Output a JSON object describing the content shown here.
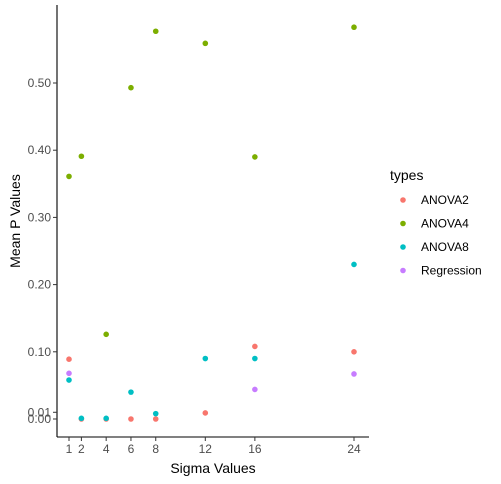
{
  "chart_data": {
    "type": "scatter",
    "title": "",
    "xlabel": "Sigma Values",
    "ylabel": "Mean P Values",
    "xlim": [
      0.0,
      25.0
    ],
    "ylim": [
      -0.015,
      0.612
    ],
    "x_ticks": [
      1,
      2,
      4,
      6,
      8,
      12,
      16,
      24
    ],
    "y_ticks": [
      0.0,
      0.01,
      0.1,
      0.2,
      0.3,
      0.4,
      0.5
    ],
    "y_tick_labels": [
      "0.00",
      "0.01",
      "0.10",
      "0.20",
      "0.30",
      "0.40",
      "0.50"
    ],
    "grid": false,
    "legend": {
      "title": "types",
      "position": "right"
    },
    "series": [
      {
        "name": "ANOVA2",
        "color": "#F8766D",
        "points": [
          {
            "x": 1,
            "y": 0.089
          },
          {
            "x": 2,
            "y": 0.0
          },
          {
            "x": 4,
            "y": 0.0
          },
          {
            "x": 6,
            "y": 0.0
          },
          {
            "x": 8,
            "y": 0.0
          },
          {
            "x": 12,
            "y": 0.009
          },
          {
            "x": 16,
            "y": 0.108
          },
          {
            "x": 24,
            "y": 0.1
          }
        ]
      },
      {
        "name": "ANOVA4",
        "color": "#7CAE00",
        "points": [
          {
            "x": 1,
            "y": 0.361
          },
          {
            "x": 2,
            "y": 0.391
          },
          {
            "x": 4,
            "y": 0.126
          },
          {
            "x": 6,
            "y": 0.493
          },
          {
            "x": 8,
            "y": 0.577
          },
          {
            "x": 12,
            "y": 0.559
          },
          {
            "x": 16,
            "y": 0.39
          },
          {
            "x": 24,
            "y": 0.583
          }
        ]
      },
      {
        "name": "ANOVA8",
        "color": "#00BFC4",
        "points": [
          {
            "x": 1,
            "y": 0.058
          },
          {
            "x": 2,
            "y": 0.001
          },
          {
            "x": 4,
            "y": 0.001
          },
          {
            "x": 6,
            "y": 0.04
          },
          {
            "x": 8,
            "y": 0.008
          },
          {
            "x": 12,
            "y": 0.09
          },
          {
            "x": 16,
            "y": 0.09
          },
          {
            "x": 24,
            "y": 0.23
          }
        ]
      },
      {
        "name": "Regression",
        "color": "#C77CFF",
        "points": [
          {
            "x": 1,
            "y": 0.068
          },
          {
            "x": 16,
            "y": 0.044
          },
          {
            "x": 24,
            "y": 0.067
          }
        ]
      }
    ]
  }
}
